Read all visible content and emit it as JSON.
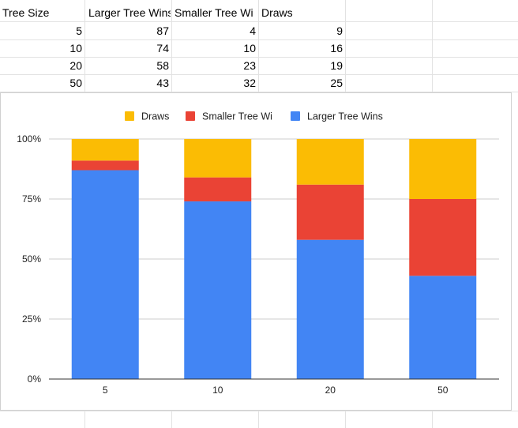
{
  "sheet": {
    "headers": [
      "Tree Size",
      "Larger Tree Wins",
      "Smaller Tree Wi",
      "Draws"
    ],
    "rows": [
      [
        "5",
        "87",
        "4",
        "9"
      ],
      [
        "10",
        "74",
        "10",
        "16"
      ],
      [
        "20",
        "58",
        "23",
        "19"
      ],
      [
        "50",
        "43",
        "32",
        "25"
      ]
    ]
  },
  "chart_data": {
    "type": "bar",
    "stacked": "percent",
    "categories": [
      "5",
      "10",
      "20",
      "50"
    ],
    "series": [
      {
        "name": "Larger Tree Wins",
        "values": [
          87,
          74,
          58,
          43
        ],
        "color": "#4285f4"
      },
      {
        "name": "Smaller Tree Wi",
        "values": [
          4,
          10,
          23,
          32
        ],
        "color": "#ea4335"
      },
      {
        "name": "Draws",
        "values": [
          9,
          16,
          19,
          25
        ],
        "color": "#fbbc04"
      }
    ],
    "legend_order": [
      "Draws",
      "Smaller Tree Wi",
      "Larger Tree Wins"
    ],
    "legend_position": "top",
    "ylim": [
      0,
      100
    ],
    "yticks": [
      "0%",
      "25%",
      "50%",
      "75%",
      "100%"
    ],
    "grid": true,
    "title": "",
    "xlabel": "",
    "ylabel": ""
  }
}
